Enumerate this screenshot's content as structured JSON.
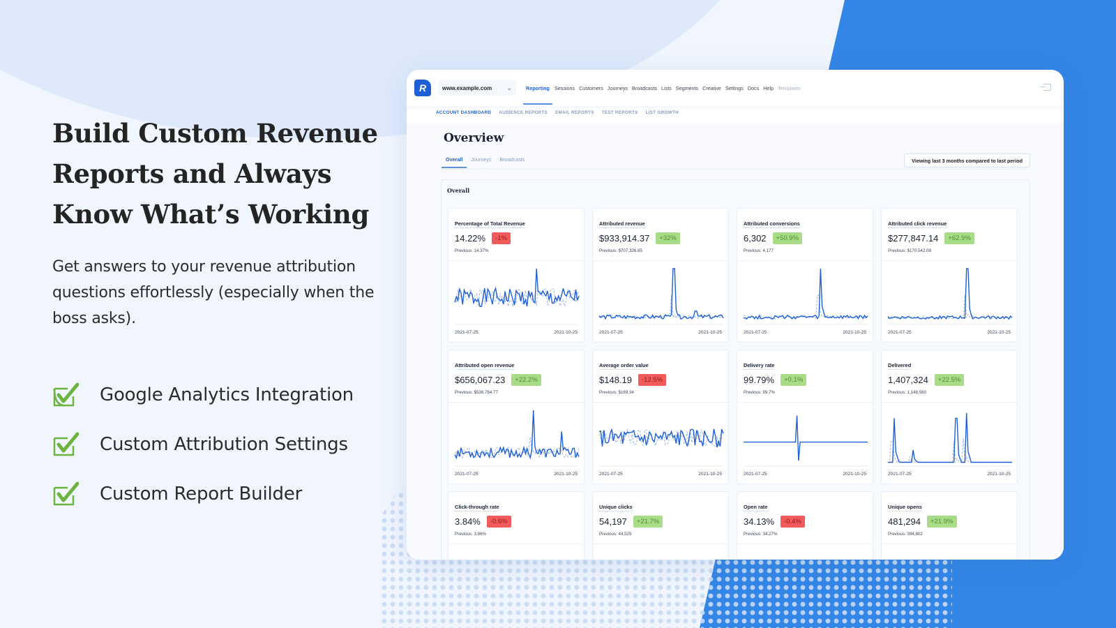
{
  "hero": {
    "title_lines": [
      "Build Custom Revenue",
      "Reports and Always",
      "Know What’s Working"
    ],
    "subtitle": "Get answers to your revenue attribution questions effortlessly (especially when the boss asks).",
    "features": [
      "Google Analytics Integration",
      "Custom Attribution Settings",
      "Custom Report Builder"
    ],
    "check_color": "#6db33f"
  },
  "app": {
    "logo_letter": "R",
    "site_selector": "www.example.com",
    "nav": [
      "Reporting",
      "Sessions",
      "Customers",
      "Journeys",
      "Broadcasts",
      "Lists",
      "Segments",
      "Creative",
      "Settings",
      "Docs",
      "Help",
      "Templates"
    ],
    "nav_active": "Reporting",
    "subnav": [
      "ACCOUNT DASHBOARD",
      "AUDIENCE REPORTS",
      "EMAIL REPORTS",
      "TEST REPORTS",
      "LIST GROWTH"
    ],
    "subnav_active": "ACCOUNT DASHBOARD",
    "page_title": "Overview",
    "tabs": [
      "Overall",
      "Journeys",
      "Broadcasts"
    ],
    "tab_active": "Overall",
    "period_button": "Viewing last 3 months compared to last period",
    "panel_title": "Overall",
    "accent_color": "#1f5fd6",
    "cards": [
      {
        "label": "Percentage of Total Revenue",
        "value": "14.22%",
        "change": "-1%",
        "direction": "down",
        "previous": "Previous: 14.37%",
        "x_start": "2021-07-25",
        "x_end": "2021-10-25"
      },
      {
        "label": "Attributed revenue",
        "value": "$933,914.37",
        "change": "+32%",
        "direction": "up",
        "previous": "Previous: $707,326.85",
        "x_start": "2021-07-25",
        "x_end": "2021-10-25"
      },
      {
        "label": "Attributed conversions",
        "value": "6,302",
        "change": "+50.9%",
        "direction": "up",
        "previous": "Previous: 4,177",
        "x_start": "2021-07-25",
        "x_end": "2021-10-25"
      },
      {
        "label": "Attributed click revenue",
        "value": "$277,847.14",
        "change": "+62.9%",
        "direction": "up",
        "previous": "Previous: $170,542.08",
        "x_start": "2021-07-25",
        "x_end": "2021-10-25"
      },
      {
        "label": "Attributed open revenue",
        "value": "$656,067.23",
        "change": "+22.2%",
        "direction": "up",
        "previous": "Previous: $536,784.77",
        "x_start": "2021-07-25",
        "x_end": "2021-10-25"
      },
      {
        "label": "Average order value",
        "value": "$148.19",
        "change": "-12.5%",
        "direction": "down",
        "previous": "Previous: $169.34",
        "x_start": "2021-07-25",
        "x_end": "2021-10-25"
      },
      {
        "label": "Delivery rate",
        "value": "99.79%",
        "change": "+0.1%",
        "direction": "up",
        "previous": "Previous: 99.7%",
        "x_start": "2021-07-25",
        "x_end": "2021-10-25"
      },
      {
        "label": "Delivered",
        "value": "1,407,324",
        "change": "+22.5%",
        "direction": "up",
        "previous": "Previous: 1,148,560",
        "x_start": "2021-07-25",
        "x_end": "2021-10-25"
      },
      {
        "label": "Click-through rate",
        "value": "3.84%",
        "change": "-0.6%",
        "direction": "down",
        "previous": "Previous: 3.86%",
        "x_start": "",
        "x_end": ""
      },
      {
        "label": "Unique clicks",
        "value": "54,197",
        "change": "+21.7%",
        "direction": "up",
        "previous": "Previous: 44,525",
        "x_start": "",
        "x_end": ""
      },
      {
        "label": "Open rate",
        "value": "34.13%",
        "change": "-0.4%",
        "direction": "down",
        "previous": "Previous: 34.27%",
        "x_start": "",
        "x_end": ""
      },
      {
        "label": "Unique opens",
        "value": "481,294",
        "change": "+21.9%",
        "direction": "up",
        "previous": "Previous: 394,802",
        "x_start": "",
        "x_end": ""
      }
    ]
  }
}
